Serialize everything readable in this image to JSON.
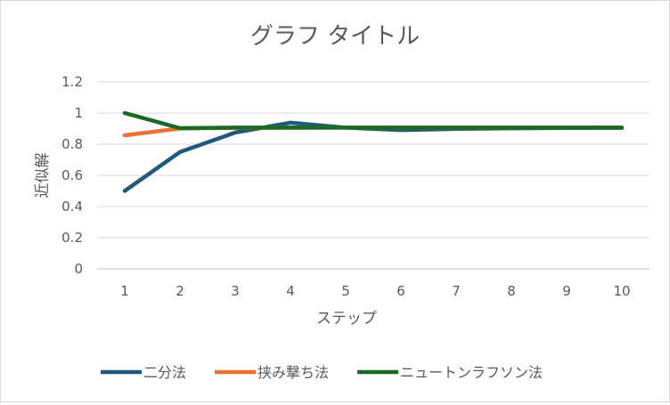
{
  "chart_data": {
    "type": "line",
    "title": "グラフ タイトル",
    "xlabel": "ステップ",
    "ylabel": "近似解",
    "categories": [
      "1",
      "2",
      "3",
      "4",
      "5",
      "6",
      "7",
      "8",
      "9",
      "10"
    ],
    "ylim": [
      0,
      1.2
    ],
    "yticks": [
      "0",
      "0.2",
      "0.4",
      "0.6",
      "0.8",
      "1",
      "1.2"
    ],
    "grid": true,
    "legend_position": "bottom",
    "series": [
      {
        "name": "二分法",
        "color": "#1f5a7d",
        "values": [
          0.5,
          0.75,
          0.875,
          0.9375,
          0.90625,
          0.890625,
          0.8984,
          0.9023,
          0.9043,
          0.9053
        ]
      },
      {
        "name": "挟み撃ち法",
        "color": "#e97132",
        "values": [
          0.857,
          0.901,
          0.905,
          0.9059,
          0.906,
          0.906,
          0.906,
          0.906,
          0.906,
          0.906
        ]
      },
      {
        "name": "ニュートンラフソン法",
        "color": "#196b24",
        "values": [
          1.0,
          0.903,
          0.906,
          0.906,
          0.906,
          0.906,
          0.906,
          0.906,
          0.906,
          0.906
        ]
      }
    ]
  }
}
